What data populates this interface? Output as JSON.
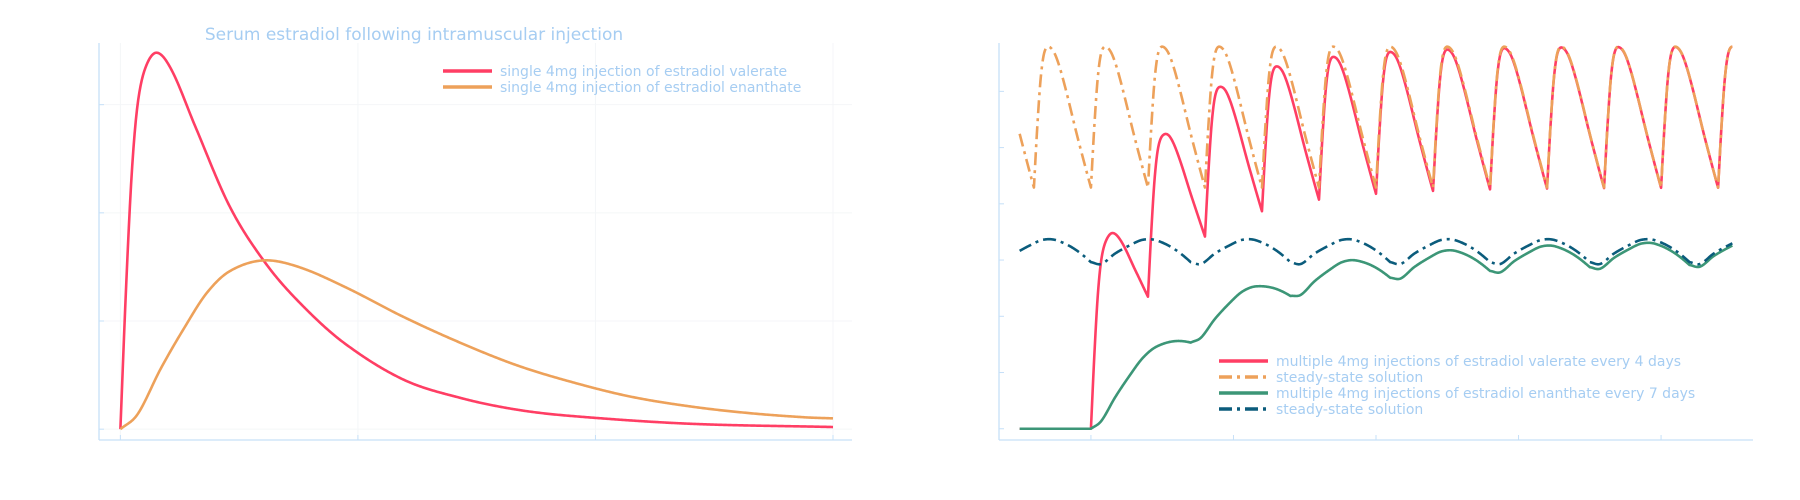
{
  "colors": {
    "axis": "#c6e0f8",
    "grid": "#f4f6f8",
    "text": "#a6cdf2",
    "valerate": "#ff3e64",
    "valerate_steady": "#eda15a",
    "enanthate": "#3c9677",
    "enanthate_steady": "#0b5c7c"
  },
  "chart_data": [
    {
      "type": "line",
      "title": "Serum estradiol following intramuscular injection",
      "xlabel": "",
      "ylabel": "",
      "xlim": [
        -0.9,
        30.8
      ],
      "ylim": [
        -10,
        357
      ],
      "x_ticks": [
        0,
        10,
        20,
        30
      ],
      "y_ticks": [
        0,
        100,
        200,
        300
      ],
      "tick_labels_shown": false,
      "grid": true,
      "legend_placement": "top-right",
      "series": [
        {
          "name": "single 4mg injection of estradiol valerate",
          "color": "#ff3e64",
          "style": "solid",
          "x": [
            0,
            0.24,
            0.48,
            0.73,
            1.07,
            1.55,
            2.18,
            3.15,
            4.6,
            6.06,
            7.5,
            9.4,
            11.9,
            14.3,
            16.7,
            19.1,
            24,
            30
          ],
          "y": [
            0,
            131,
            237,
            301,
            335,
            348,
            331,
            280,
            206,
            155,
            118,
            80,
            46,
            29,
            18,
            12,
            5,
            2
          ]
        },
        {
          "name": "single 4mg injection of estradiol enanthate",
          "color": "#eda15a",
          "style": "solid",
          "x": [
            0,
            0.73,
            1.7,
            2.7,
            3.64,
            4.6,
            6,
            7.5,
            9.5,
            11.9,
            14.3,
            16.7,
            19.1,
            21.5,
            24,
            26.4,
            28.8,
            30
          ],
          "y": [
            0,
            14,
            56,
            94,
            126,
            146,
            156,
            150,
            131,
            104,
            80,
            59,
            43,
            30,
            21,
            15,
            11,
            10
          ]
        }
      ]
    },
    {
      "type": "line",
      "title": "",
      "xlabel": "",
      "ylabel": "",
      "xlim": [
        -6.45,
        46.45
      ],
      "ylim": [
        -20,
        686
      ],
      "x_range_plotted": [
        -5,
        45
      ],
      "x_ticks": [
        0,
        10,
        20,
        30,
        40
      ],
      "y_ticks": [
        0,
        100,
        200,
        300,
        400,
        500,
        600
      ],
      "tick_labels_shown": false,
      "grid": false,
      "legend_placement": "bottom-right",
      "series": [
        {
          "name": "multiple 4mg injections of estradiol valerate every 4 days",
          "color": "#ff3e64",
          "style": "solid",
          "source_series_index": 0,
          "injection_interval_days": 4,
          "first_injection_day": 0,
          "mode": "repeated"
        },
        {
          "name": "steady-state solution",
          "color": "#eda15a",
          "style": "dash-dot",
          "source_series_index": 0,
          "injection_interval_days": 4,
          "mode": "steady-state"
        },
        {
          "name": "multiple 4mg injections of estradiol enanthate every 7 days",
          "color": "#3c9677",
          "style": "solid",
          "source_series_index": 1,
          "injection_interval_days": 7,
          "first_injection_day": 0,
          "mode": "repeated"
        },
        {
          "name": "steady-state solution",
          "color": "#0b5c7c",
          "style": "dash-dot",
          "source_series_index": 1,
          "injection_interval_days": 7,
          "mode": "steady-state"
        }
      ]
    }
  ]
}
